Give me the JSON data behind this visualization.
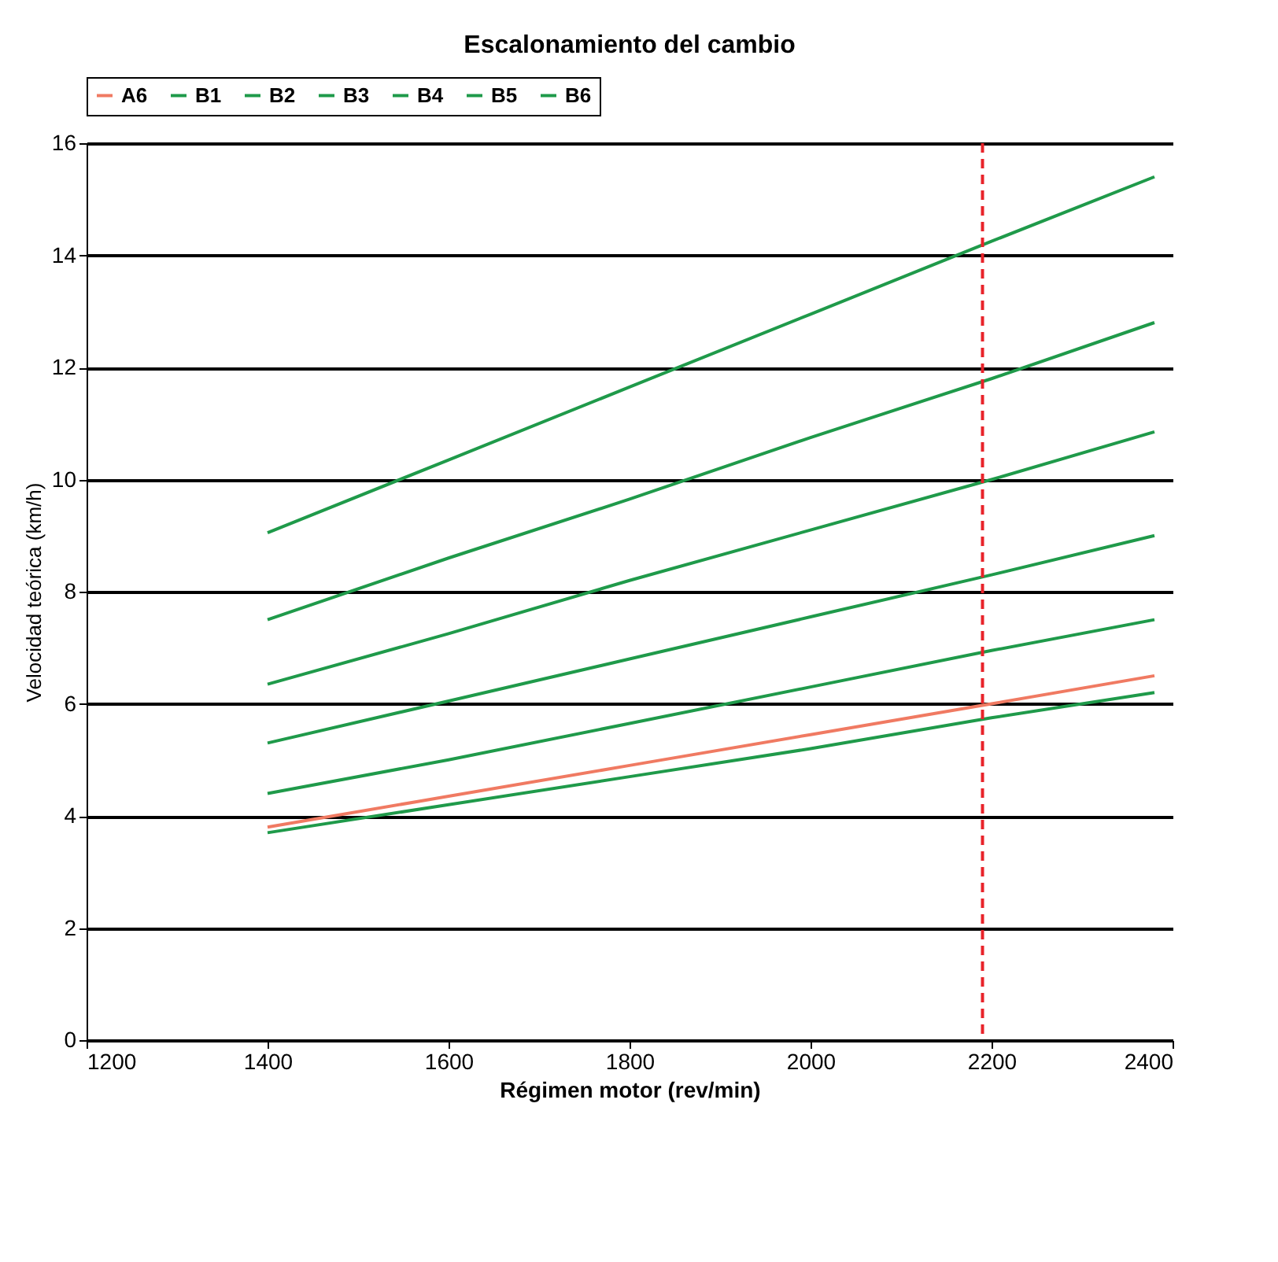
{
  "chart_data": {
    "type": "line",
    "title": "Escalonamiento del cambio",
    "xlabel": "Régimen motor (rev/min)",
    "ylabel": "Velocidad teórica (km/h)",
    "x": [
      1400,
      1600,
      1800,
      2000,
      2200,
      2380
    ],
    "series": [
      {
        "name": "A6",
        "color": "#f07a62",
        "values": [
          3.8,
          4.35,
          4.9,
          5.45,
          6.0,
          6.5
        ]
      },
      {
        "name": "B1",
        "color": "#1f9a4a",
        "values": [
          3.7,
          4.2,
          4.7,
          5.2,
          5.75,
          6.2
        ]
      },
      {
        "name": "B2",
        "color": "#1f9a4a",
        "values": [
          4.4,
          5.0,
          5.65,
          6.3,
          6.95,
          7.5
        ]
      },
      {
        "name": "B3",
        "color": "#1f9a4a",
        "values": [
          5.3,
          6.05,
          6.8,
          7.55,
          8.3,
          9.0
        ]
      },
      {
        "name": "B4",
        "color": "#1f9a4a",
        "values": [
          6.35,
          7.25,
          8.2,
          9.1,
          10.0,
          10.85
        ]
      },
      {
        "name": "B5",
        "color": "#1f9a4a",
        "values": [
          7.5,
          8.6,
          9.65,
          10.75,
          11.8,
          12.8
        ]
      },
      {
        "name": "B6",
        "color": "#1f9a4a",
        "values": [
          9.05,
          10.35,
          11.65,
          12.95,
          14.25,
          15.4
        ]
      }
    ],
    "xlim": [
      1200,
      2400
    ],
    "xticks": [
      1200,
      1400,
      1600,
      1800,
      2000,
      2200,
      2400
    ],
    "ylim": [
      0,
      16
    ],
    "yticks": [
      0,
      2,
      4,
      6,
      8,
      10,
      12,
      14,
      16
    ],
    "grid": "y",
    "legend": "top",
    "marker": "none",
    "line_style": "solid",
    "ref_lines": [
      {
        "axis": "x",
        "value": 2190,
        "color": "#e8232a",
        "line_style": "dashed"
      }
    ]
  }
}
